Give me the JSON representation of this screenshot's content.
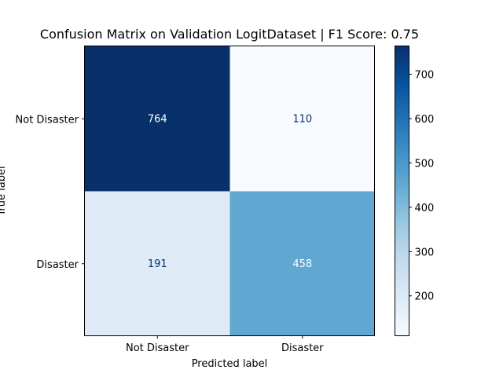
{
  "chart_data": {
    "type": "heatmap",
    "title": "Confusion Matrix on Validation LogitDataset | F1 Score: 0.75",
    "xlabel": "Predicted label",
    "ylabel": "True label",
    "x_categories": [
      "Not Disaster",
      "Disaster"
    ],
    "y_categories": [
      "Not Disaster",
      "Disaster"
    ],
    "values": [
      [
        764,
        110
      ],
      [
        191,
        458
      ]
    ],
    "colormap": "Blues",
    "colorbar": {
      "range": [
        110,
        764
      ],
      "ticks": [
        200,
        300,
        400,
        500,
        600,
        700
      ],
      "tick_labels": [
        "200",
        "300",
        "400",
        "500",
        "600",
        "700"
      ]
    },
    "grid": false,
    "legend": "none"
  }
}
